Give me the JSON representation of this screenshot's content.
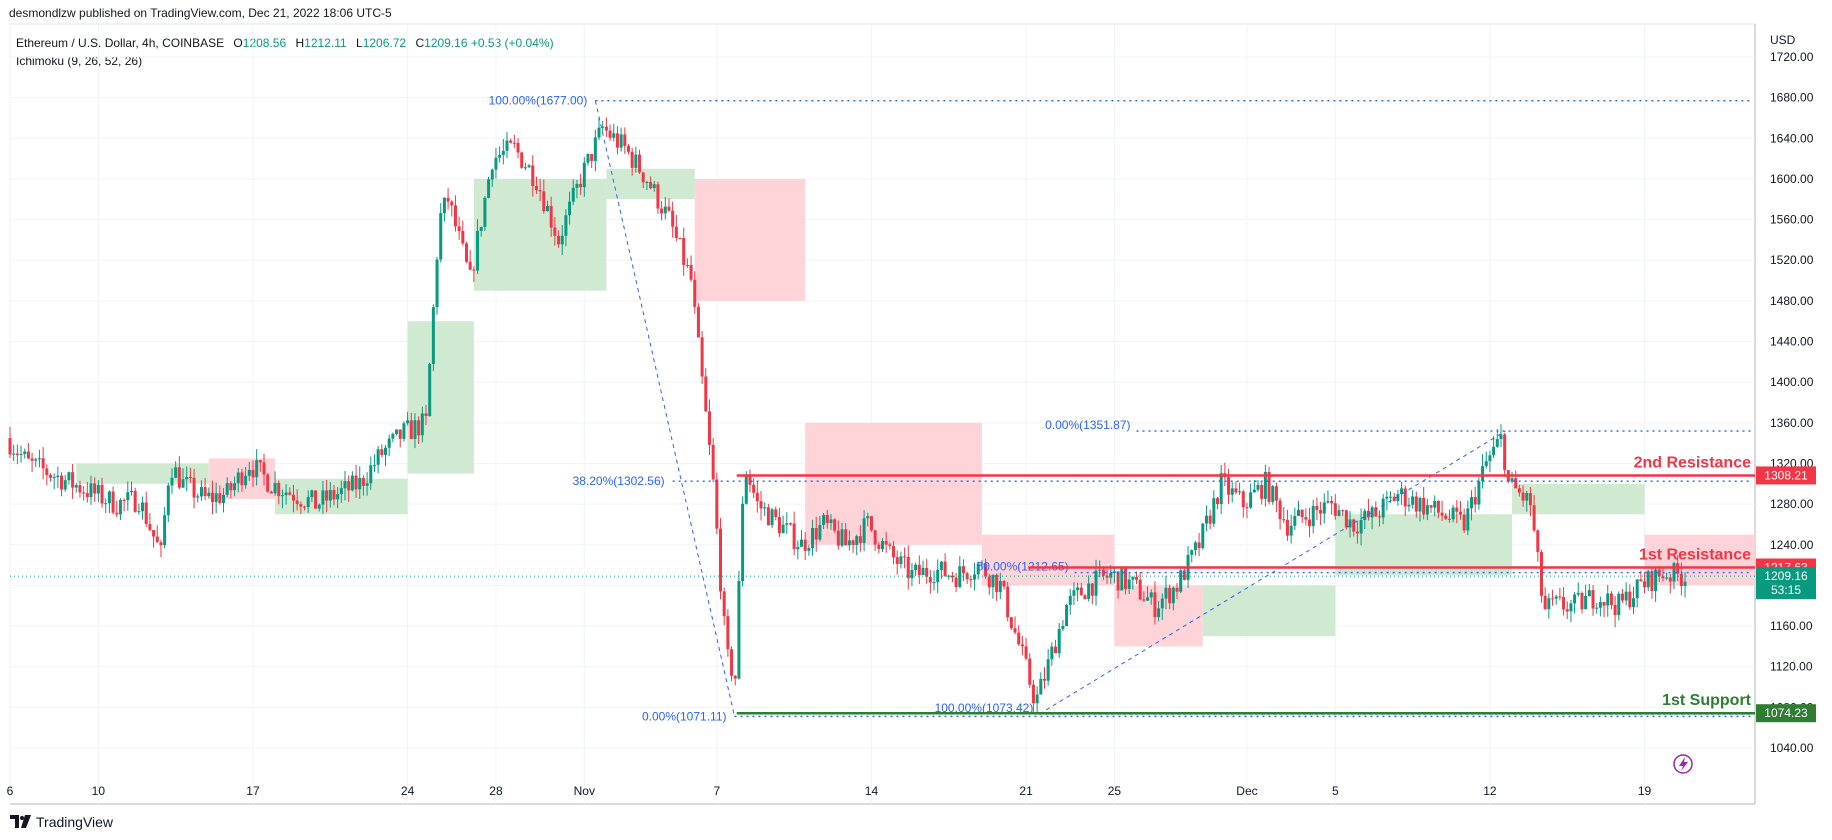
{
  "header": {
    "published_line": "desmondlzw published on TradingView.com, Dec 21, 2022 18:06 UTC-5"
  },
  "legend": {
    "symbol": "Ethereum / U.S. Dollar, 4h, COINBASE",
    "open_label": "O",
    "open": "1208.56",
    "high_label": "H",
    "high": "1212.11",
    "low_label": "L",
    "low": "1206.72",
    "close_label": "C",
    "close": "1209.16",
    "change": "+0.53 (+0.04%)",
    "indicator": "Ichimoku (9, 26, 52, 26)"
  },
  "footer": {
    "brand": "TradingView"
  },
  "colors": {
    "up": "#089981",
    "down": "#f23645",
    "fib": "#2962ff",
    "resistance": "#f23645",
    "support": "#2e7d32",
    "cloud_bull": "#c8e6c9",
    "cloud_bear": "#ffcdd2",
    "grid": "#f0f3fa"
  },
  "chart_data": {
    "type": "candlestick",
    "title": "",
    "currency_label": "USD",
    "ylim": [
      1000,
      1740
    ],
    "y_ticks": [
      1040,
      1080,
      1120,
      1160,
      1200,
      1240,
      1280,
      1320,
      1360,
      1400,
      1440,
      1480,
      1520,
      1560,
      1600,
      1640,
      1680,
      1720
    ],
    "x_ticks": [
      {
        "label": "6",
        "day": 6
      },
      {
        "label": "10",
        "day": 10
      },
      {
        "label": "17",
        "day": 17
      },
      {
        "label": "24",
        "day": 24
      },
      {
        "label": "28",
        "day": 28
      },
      {
        "label": "Nov",
        "day": 32
      },
      {
        "label": "7",
        "day": 38
      },
      {
        "label": "14",
        "day": 45
      },
      {
        "label": "21",
        "day": 52
      },
      {
        "label": "25",
        "day": 56
      },
      {
        "label": "Dec",
        "day": 62
      },
      {
        "label": "5",
        "day": 66
      },
      {
        "label": "12",
        "day": 73
      },
      {
        "label": "19",
        "day": 80
      }
    ],
    "price_path": [
      [
        6,
        1345
      ],
      [
        7,
        1320
      ],
      [
        8,
        1310
      ],
      [
        9,
        1300
      ],
      [
        10,
        1290
      ],
      [
        11,
        1280
      ],
      [
        12,
        1285
      ],
      [
        13,
        1230
      ],
      [
        13.4,
        1320
      ],
      [
        14,
        1300
      ],
      [
        15,
        1285
      ],
      [
        16,
        1290
      ],
      [
        17,
        1320
      ],
      [
        18,
        1300
      ],
      [
        19,
        1290
      ],
      [
        20,
        1280
      ],
      [
        21,
        1290
      ],
      [
        22,
        1300
      ],
      [
        23,
        1330
      ],
      [
        24,
        1350
      ],
      [
        25,
        1360
      ],
      [
        25.6,
        1560
      ],
      [
        26,
        1580
      ],
      [
        27,
        1500
      ],
      [
        28,
        1620
      ],
      [
        29,
        1630
      ],
      [
        30,
        1600
      ],
      [
        31,
        1540
      ],
      [
        32,
        1600
      ],
      [
        33,
        1650
      ],
      [
        34,
        1630
      ],
      [
        35,
        1600
      ],
      [
        36,
        1560
      ],
      [
        37,
        1500
      ],
      [
        38,
        1300
      ],
      [
        38.6,
        1130
      ],
      [
        39,
        1110
      ],
      [
        39.4,
        1320
      ],
      [
        40,
        1280
      ],
      [
        41,
        1260
      ],
      [
        42,
        1240
      ],
      [
        43,
        1260
      ],
      [
        44,
        1240
      ],
      [
        45,
        1260
      ],
      [
        46,
        1230
      ],
      [
        47,
        1210
      ],
      [
        48,
        1215
      ],
      [
        49,
        1210
      ],
      [
        50,
        1220
      ],
      [
        51,
        1200
      ],
      [
        52,
        1130
      ],
      [
        52.6,
        1085
      ],
      [
        53,
        1110
      ],
      [
        54,
        1180
      ],
      [
        55,
        1200
      ],
      [
        56,
        1210
      ],
      [
        57,
        1200
      ],
      [
        58,
        1180
      ],
      [
        59,
        1200
      ],
      [
        60,
        1240
      ],
      [
        61,
        1300
      ],
      [
        62,
        1280
      ],
      [
        63,
        1300
      ],
      [
        64,
        1260
      ],
      [
        65,
        1270
      ],
      [
        66,
        1280
      ],
      [
        67,
        1260
      ],
      [
        68,
        1270
      ],
      [
        69,
        1290
      ],
      [
        70,
        1280
      ],
      [
        71,
        1270
      ],
      [
        72,
        1260
      ],
      [
        73,
        1320
      ],
      [
        73.7,
        1345
      ],
      [
        74,
        1300
      ],
      [
        75,
        1280
      ],
      [
        75.6,
        1175
      ],
      [
        76,
        1180
      ],
      [
        77,
        1180
      ],
      [
        78,
        1190
      ],
      [
        79,
        1180
      ],
      [
        80,
        1200
      ],
      [
        81,
        1212
      ],
      [
        82,
        1209
      ]
    ],
    "levels": [
      {
        "name": "2nd Resistance",
        "value": 1308.21,
        "label": "1308.21"
      },
      {
        "name": "1st Resistance",
        "value": 1217.63,
        "label": "1217.63"
      },
      {
        "name": "1st Support",
        "value": 1074.23,
        "label": "1074.23"
      }
    ],
    "last_price": {
      "value": 1209.16,
      "label": "1209.16",
      "countdown": "53:15"
    },
    "fib_1": {
      "high": 1677.0,
      "low": 1071.11,
      "level_382": 1302.56,
      "labels": {
        "high": "100.00%(1677.00)",
        "mid": "38.20%(1302.56)",
        "low": "0.00%(1071.11)"
      }
    },
    "fib_2": {
      "high": 1351.87,
      "low": 1073.42,
      "level_50": 1212.65,
      "labels": {
        "high": "0.00%(1351.87)",
        "mid": "50.00%(1212.65)",
        "low": "100.00%(1073.42)"
      }
    },
    "cloud_segments": [
      {
        "x0": 9,
        "x1": 15,
        "a": 1300,
        "b": 1320,
        "bull": true
      },
      {
        "x0": 15,
        "x1": 18,
        "a": 1285,
        "b": 1325,
        "bull": false
      },
      {
        "x0": 18,
        "x1": 24,
        "a": 1270,
        "b": 1305,
        "bull": true
      },
      {
        "x0": 24,
        "x1": 27,
        "a": 1310,
        "b": 1460,
        "bull": true
      },
      {
        "x0": 27,
        "x1": 33,
        "a": 1490,
        "b": 1600,
        "bull": true
      },
      {
        "x0": 33,
        "x1": 37,
        "a": 1580,
        "b": 1610,
        "bull": true
      },
      {
        "x0": 37,
        "x1": 42,
        "a": 1480,
        "b": 1600,
        "bull": false
      },
      {
        "x0": 42,
        "x1": 50,
        "a": 1240,
        "b": 1360,
        "bull": false
      },
      {
        "x0": 50,
        "x1": 56,
        "a": 1200,
        "b": 1250,
        "bull": false
      },
      {
        "x0": 56,
        "x1": 60,
        "a": 1140,
        "b": 1200,
        "bull": false
      },
      {
        "x0": 60,
        "x1": 66,
        "a": 1150,
        "b": 1200,
        "bull": true
      },
      {
        "x0": 66,
        "x1": 74,
        "a": 1210,
        "b": 1270,
        "bull": true
      },
      {
        "x0": 74,
        "x1": 80,
        "a": 1270,
        "b": 1300,
        "bull": true
      },
      {
        "x0": 80,
        "x1": 85,
        "a": 1200,
        "b": 1250,
        "bull": false
      }
    ]
  }
}
